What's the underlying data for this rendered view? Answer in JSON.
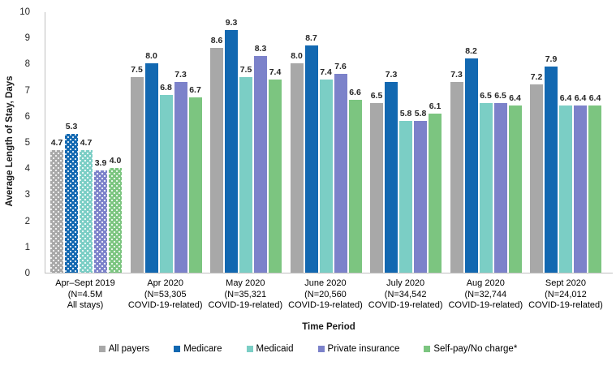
{
  "chart_data": {
    "type": "bar",
    "title": "",
    "xlabel": "Time Period",
    "ylabel": "Average Length of Stay, Days",
    "ylim": [
      0,
      10
    ],
    "yticks": [
      0,
      1,
      2,
      3,
      4,
      5,
      6,
      7,
      8,
      9,
      10
    ],
    "grid": false,
    "legend_position": "bottom",
    "patterned_group_index": 0,
    "pattern_style": "white polka dots on first category group",
    "categories": [
      [
        "Apr–Sept 2019",
        "(N=4.5M",
        "All stays)"
      ],
      [
        "Apr 2020",
        "(N=53,305",
        "COVID-19-related)"
      ],
      [
        "May 2020",
        "(N=35,321",
        "COVID-19-related)"
      ],
      [
        "June 2020",
        "(N=20,560",
        "COVID-19-related)"
      ],
      [
        "July 2020",
        "(N=34,542",
        "COVID-19-related)"
      ],
      [
        "Aug 2020",
        "(N=32,744",
        "COVID-19-related)"
      ],
      [
        "Sept 2020",
        "(N=24,012",
        "COVID-19-related)"
      ]
    ],
    "series": [
      {
        "name": "All payers",
        "color": "#a8a8a8",
        "values": [
          4.7,
          7.5,
          8.6,
          8.0,
          6.5,
          7.3,
          7.2
        ]
      },
      {
        "name": "Medicare",
        "color": "#1268b1",
        "values": [
          5.3,
          8.0,
          9.3,
          8.7,
          7.3,
          8.2,
          7.9
        ]
      },
      {
        "name": "Medicaid",
        "color": "#7bcec5",
        "values": [
          4.7,
          6.8,
          7.5,
          7.4,
          5.8,
          6.5,
          6.4
        ]
      },
      {
        "name": "Private insurance",
        "color": "#7c82ca",
        "values": [
          3.9,
          7.3,
          8.3,
          7.6,
          5.8,
          6.5,
          6.4
        ]
      },
      {
        "name": "Self-pay/No charge*",
        "color": "#7cc580",
        "values": [
          4.0,
          6.7,
          7.4,
          6.6,
          6.1,
          6.4,
          6.4
        ]
      }
    ]
  },
  "axis_colors": {
    "axis_line": "#bfbfbf",
    "label_text": "#262626"
  }
}
